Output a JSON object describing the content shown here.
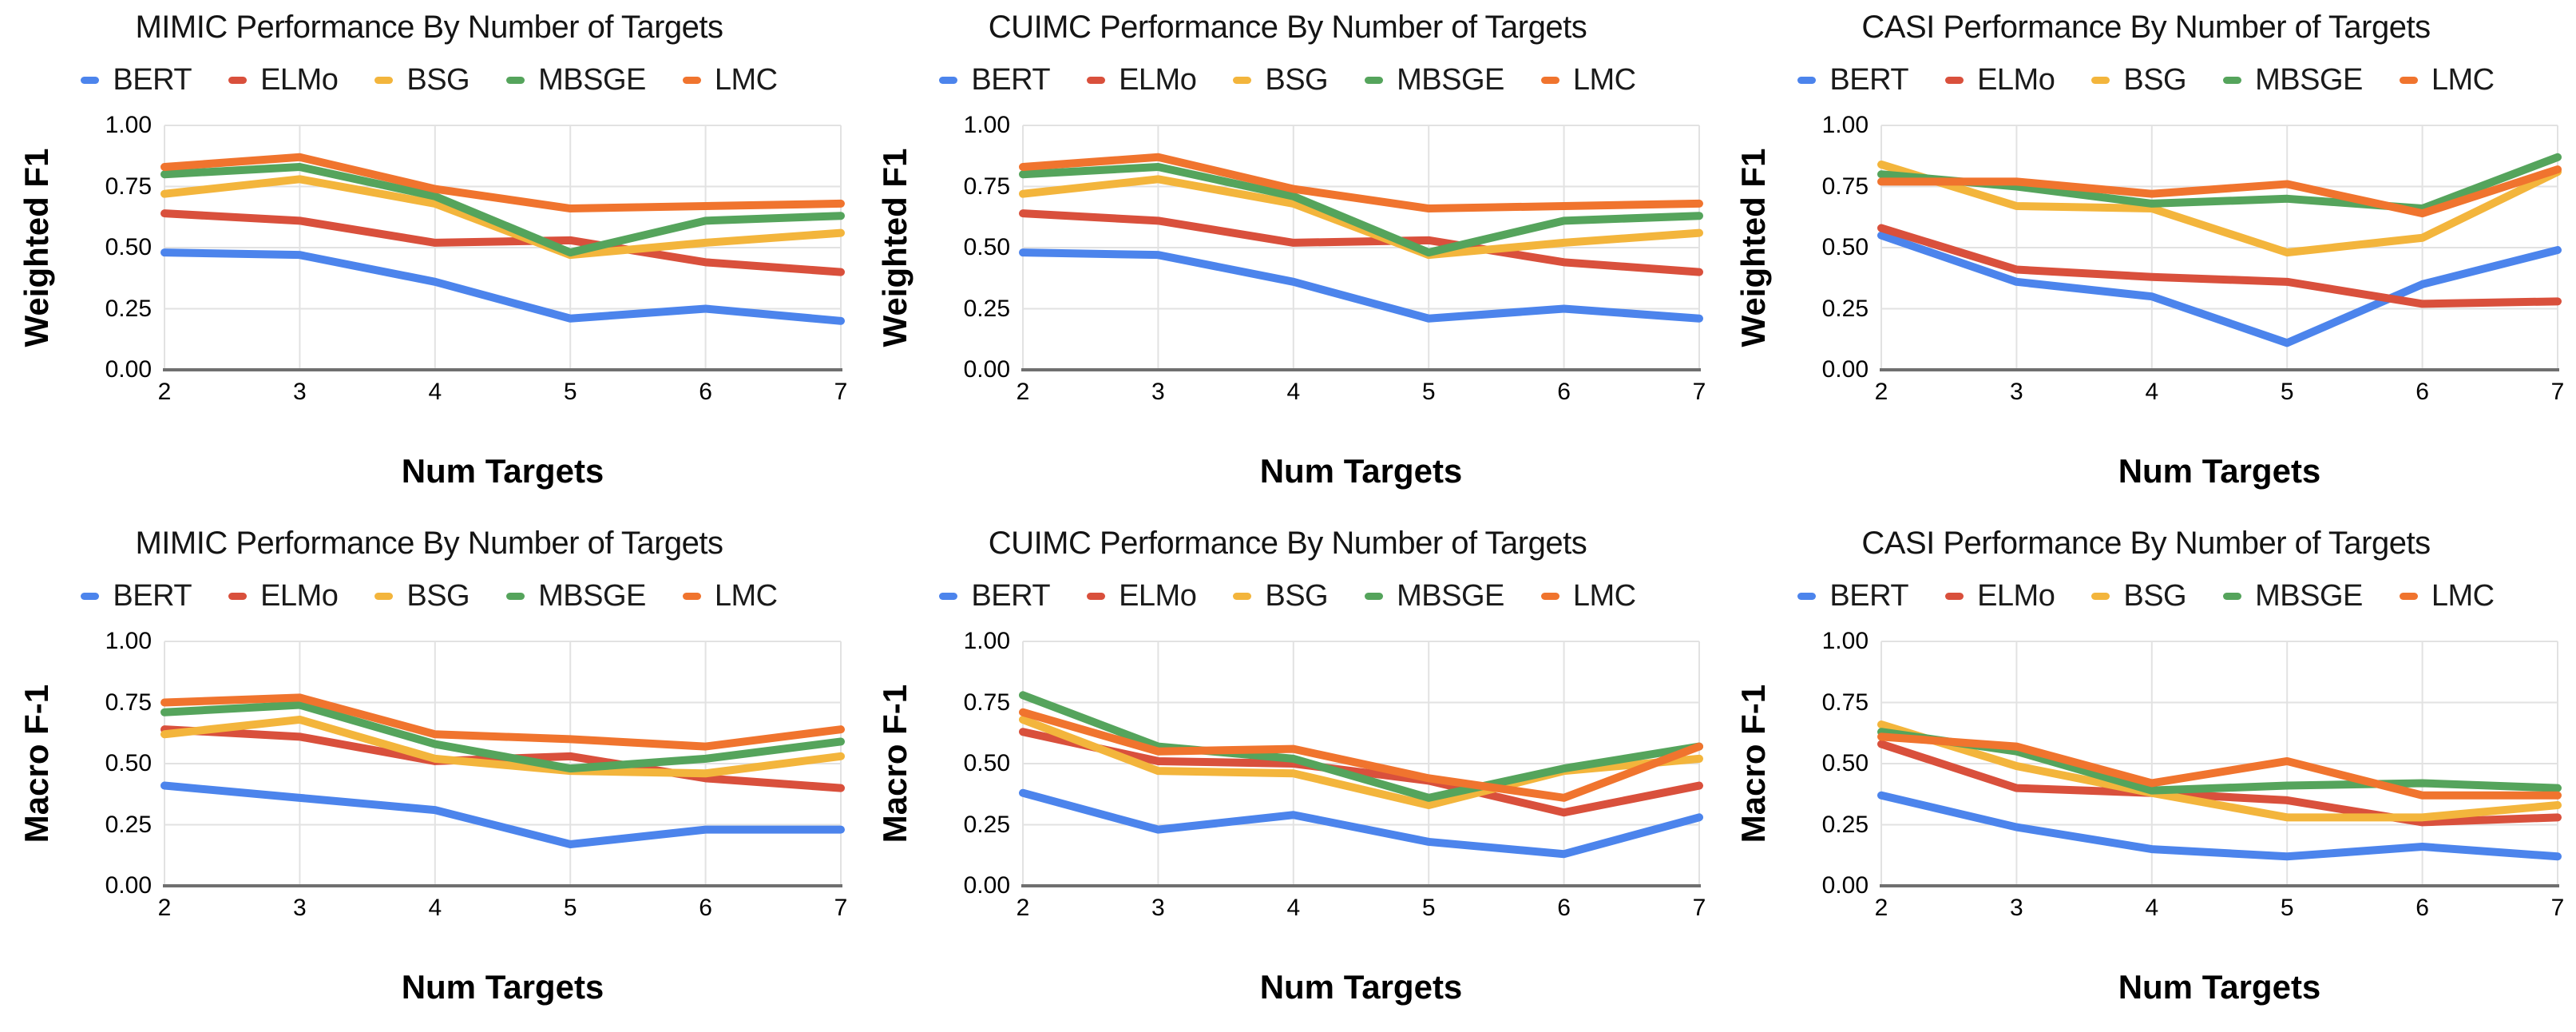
{
  "figure": {
    "background": "#ffffff",
    "grid_color": "#e2e2e2",
    "baseline_color": "#6f6f6f",
    "rows": 2,
    "cols": 3
  },
  "y_tick_labels": [
    "1.00",
    "0.75",
    "0.50",
    "0.25",
    "0.00"
  ],
  "y_tick_values": [
    1.0,
    0.75,
    0.5,
    0.25,
    0.0
  ],
  "series": [
    {
      "name": "BERT",
      "color": "#4c84ec"
    },
    {
      "name": "ELMo",
      "color": "#d9503c"
    },
    {
      "name": "BSG",
      "color": "#f3b53c"
    },
    {
      "name": "MBSGE",
      "color": "#55a45c"
    },
    {
      "name": "LMC",
      "color": "#f0742e"
    }
  ],
  "chart_data": [
    {
      "type": "line",
      "title": "MIMIC Performance By Number of Targets",
      "xlabel": "Num Targets",
      "ylabel": "Weighted F1",
      "x": [
        2,
        3,
        4,
        5,
        6,
        7
      ],
      "ylim": [
        0,
        1
      ],
      "grid": true,
      "legend_position": "top",
      "series": [
        {
          "name": "BERT",
          "values": [
            0.48,
            0.47,
            0.36,
            0.21,
            0.25,
            0.2
          ]
        },
        {
          "name": "ELMo",
          "values": [
            0.64,
            0.61,
            0.52,
            0.53,
            0.44,
            0.4
          ]
        },
        {
          "name": "BSG",
          "values": [
            0.72,
            0.78,
            0.68,
            0.47,
            0.52,
            0.56
          ]
        },
        {
          "name": "MBSGE",
          "values": [
            0.8,
            0.83,
            0.71,
            0.48,
            0.61,
            0.63
          ]
        },
        {
          "name": "LMC",
          "values": [
            0.83,
            0.87,
            0.74,
            0.66,
            0.67,
            0.68
          ]
        }
      ]
    },
    {
      "type": "line",
      "title": "CUIMC Performance By Number of Targets",
      "xlabel": "Num Targets",
      "ylabel": "Weighted F1",
      "x": [
        2,
        3,
        4,
        5,
        6,
        7
      ],
      "ylim": [
        0,
        1
      ],
      "grid": true,
      "legend_position": "top",
      "series": [
        {
          "name": "BERT",
          "values": [
            0.48,
            0.47,
            0.36,
            0.21,
            0.25,
            0.21
          ]
        },
        {
          "name": "ELMo",
          "values": [
            0.64,
            0.61,
            0.52,
            0.53,
            0.44,
            0.4
          ]
        },
        {
          "name": "BSG",
          "values": [
            0.72,
            0.78,
            0.68,
            0.47,
            0.52,
            0.56
          ]
        },
        {
          "name": "MBSGE",
          "values": [
            0.8,
            0.83,
            0.71,
            0.48,
            0.61,
            0.63
          ]
        },
        {
          "name": "LMC",
          "values": [
            0.83,
            0.87,
            0.74,
            0.66,
            0.67,
            0.68
          ]
        }
      ]
    },
    {
      "type": "line",
      "title": "CASI Performance By Number of Targets",
      "xlabel": "Num Targets",
      "ylabel": "Weighted F1",
      "x": [
        2,
        3,
        4,
        5,
        6,
        7
      ],
      "ylim": [
        0,
        1
      ],
      "grid": true,
      "legend_position": "top",
      "series": [
        {
          "name": "BERT",
          "values": [
            0.55,
            0.36,
            0.3,
            0.11,
            0.35,
            0.49
          ]
        },
        {
          "name": "ELMo",
          "values": [
            0.58,
            0.41,
            0.38,
            0.36,
            0.27,
            0.28
          ]
        },
        {
          "name": "BSG",
          "values": [
            0.84,
            0.67,
            0.66,
            0.48,
            0.54,
            0.81
          ]
        },
        {
          "name": "MBSGE",
          "values": [
            0.8,
            0.75,
            0.68,
            0.7,
            0.66,
            0.87
          ]
        },
        {
          "name": "LMC",
          "values": [
            0.77,
            0.77,
            0.72,
            0.76,
            0.64,
            0.82
          ]
        }
      ]
    },
    {
      "type": "line",
      "title": "MIMIC Performance By Number of Targets",
      "xlabel": "Num Targets",
      "ylabel": "Macro F-1",
      "x": [
        2,
        3,
        4,
        5,
        6,
        7
      ],
      "ylim": [
        0,
        1
      ],
      "grid": true,
      "legend_position": "top",
      "series": [
        {
          "name": "BERT",
          "values": [
            0.41,
            0.36,
            0.31,
            0.17,
            0.23,
            0.23
          ]
        },
        {
          "name": "ELMo",
          "values": [
            0.64,
            0.61,
            0.51,
            0.53,
            0.44,
            0.4
          ]
        },
        {
          "name": "BSG",
          "values": [
            0.62,
            0.68,
            0.52,
            0.47,
            0.46,
            0.53
          ]
        },
        {
          "name": "MBSGE",
          "values": [
            0.71,
            0.74,
            0.58,
            0.48,
            0.52,
            0.59
          ]
        },
        {
          "name": "LMC",
          "values": [
            0.75,
            0.77,
            0.62,
            0.6,
            0.57,
            0.64
          ]
        }
      ]
    },
    {
      "type": "line",
      "title": "CUIMC Performance By Number of Targets",
      "xlabel": "Num Targets",
      "ylabel": "Macro F-1",
      "x": [
        2,
        3,
        4,
        5,
        6,
        7
      ],
      "ylim": [
        0,
        1
      ],
      "grid": true,
      "legend_position": "top",
      "series": [
        {
          "name": "BERT",
          "values": [
            0.38,
            0.23,
            0.29,
            0.18,
            0.13,
            0.28
          ]
        },
        {
          "name": "ELMo",
          "values": [
            0.63,
            0.51,
            0.5,
            0.43,
            0.3,
            0.41
          ]
        },
        {
          "name": "BSG",
          "values": [
            0.68,
            0.47,
            0.46,
            0.33,
            0.47,
            0.52
          ]
        },
        {
          "name": "MBSGE",
          "values": [
            0.78,
            0.57,
            0.52,
            0.36,
            0.48,
            0.57
          ]
        },
        {
          "name": "LMC",
          "values": [
            0.71,
            0.55,
            0.56,
            0.44,
            0.36,
            0.57
          ]
        }
      ]
    },
    {
      "type": "line",
      "title": "CASI Performance By Number of Targets",
      "xlabel": "Num Targets",
      "ylabel": "Macro F-1",
      "x": [
        2,
        3,
        4,
        5,
        6,
        7
      ],
      "ylim": [
        0,
        1
      ],
      "grid": true,
      "legend_position": "top",
      "series": [
        {
          "name": "BERT",
          "values": [
            0.37,
            0.24,
            0.15,
            0.12,
            0.16,
            0.12
          ]
        },
        {
          "name": "ELMo",
          "values": [
            0.58,
            0.4,
            0.38,
            0.35,
            0.26,
            0.28
          ]
        },
        {
          "name": "BSG",
          "values": [
            0.66,
            0.49,
            0.38,
            0.28,
            0.28,
            0.33
          ]
        },
        {
          "name": "MBSGE",
          "values": [
            0.63,
            0.55,
            0.39,
            0.41,
            0.42,
            0.4
          ]
        },
        {
          "name": "LMC",
          "values": [
            0.61,
            0.57,
            0.42,
            0.51,
            0.37,
            0.37
          ]
        }
      ]
    }
  ]
}
